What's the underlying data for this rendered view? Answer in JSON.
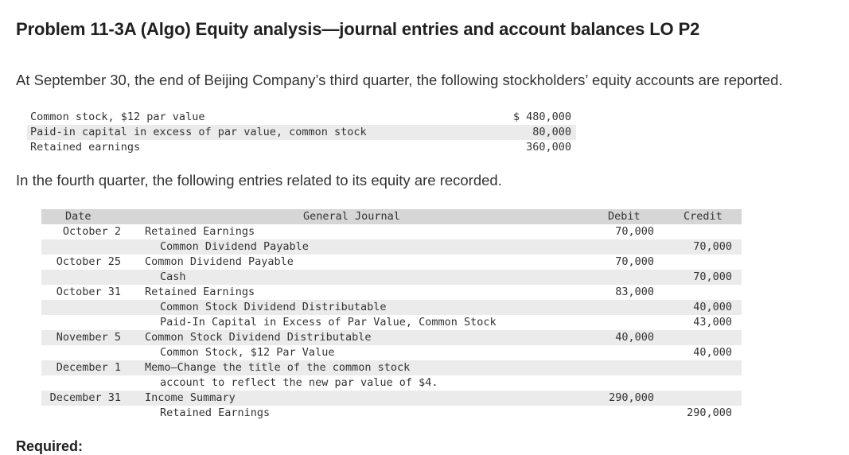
{
  "title": "Problem 11-3A (Algo) Equity analysis—journal entries and account balances LO P2",
  "intro": "At September 30, the end of Beijing Company’s third quarter, the following stockholders’ equity accounts are reported.",
  "balances": [
    {
      "label": "Common stock, $12 par value",
      "amount": "$ 480,000"
    },
    {
      "label": "Paid-in capital in excess of par value, common stock",
      "amount": "80,000"
    },
    {
      "label": "Retained earnings",
      "amount": "360,000"
    }
  ],
  "fourth_quarter_text": "In the fourth quarter, the following entries related to its equity are recorded.",
  "journal": {
    "headers": {
      "date": "Date",
      "general_journal": "General Journal",
      "debit": "Debit",
      "credit": "Credit"
    },
    "rows": [
      {
        "date": "October 2",
        "account": "Retained Earnings",
        "indent": false,
        "debit": "70,000",
        "credit": ""
      },
      {
        "date": "",
        "account": "Common Dividend Payable",
        "indent": true,
        "debit": "",
        "credit": "70,000"
      },
      {
        "date": "October 25",
        "account": "Common Dividend Payable",
        "indent": false,
        "debit": "70,000",
        "credit": ""
      },
      {
        "date": "",
        "account": "Cash",
        "indent": true,
        "debit": "",
        "credit": "70,000"
      },
      {
        "date": "October 31",
        "account": "Retained Earnings",
        "indent": false,
        "debit": "83,000",
        "credit": ""
      },
      {
        "date": "",
        "account": "Common Stock Dividend Distributable",
        "indent": true,
        "debit": "",
        "credit": "40,000"
      },
      {
        "date": "",
        "account": "Paid-In Capital in Excess of Par Value, Common Stock",
        "indent": true,
        "debit": "",
        "credit": "43,000"
      },
      {
        "date": "November 5",
        "account": "Common Stock Dividend Distributable",
        "indent": false,
        "debit": "40,000",
        "credit": ""
      },
      {
        "date": "",
        "account": "Common Stock, $12 Par Value",
        "indent": true,
        "debit": "",
        "credit": "40,000"
      },
      {
        "date": "December 1",
        "account": "Memo—Change the title of the common stock",
        "indent": false,
        "debit": "",
        "credit": ""
      },
      {
        "date": "",
        "account": "account to reflect the new par value of $4.",
        "indent": true,
        "debit": "",
        "credit": ""
      },
      {
        "date": "December 31",
        "account": "Income Summary",
        "indent": false,
        "debit": "290,000",
        "credit": ""
      },
      {
        "date": "",
        "account": "Retained Earnings",
        "indent": true,
        "debit": "",
        "credit": "290,000"
      }
    ]
  },
  "required_label": "Required:"
}
